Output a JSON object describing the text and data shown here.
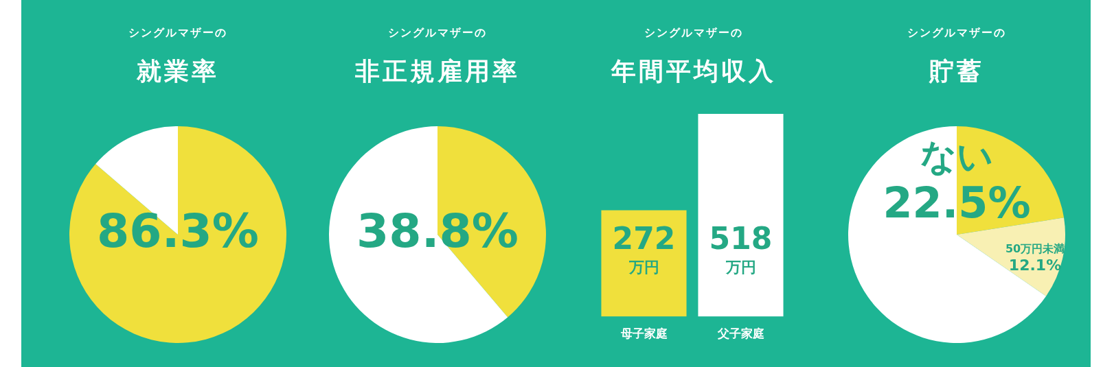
{
  "chart_data": [
    {
      "type": "pie",
      "subtitle": "シングルマザーの",
      "title": "就業率",
      "categories": [
        null,
        null
      ],
      "values": [
        86.3,
        13.7
      ],
      "colors": [
        "#f0e03c",
        "#ffffff"
      ],
      "value_labels": [
        "86.3%",
        null
      ]
    },
    {
      "type": "pie",
      "subtitle": "シングルマザーの",
      "title": "非正規雇用率",
      "categories": [
        null,
        null
      ],
      "values": [
        38.8,
        61.2
      ],
      "colors": [
        "#f0e03c",
        "#ffffff"
      ],
      "value_labels": [
        "38.8%",
        null
      ]
    },
    {
      "type": "bar",
      "subtitle": "シングルマザーの",
      "title": "年間平均収入",
      "categories": [
        "母子家庭",
        "父子家庭"
      ],
      "values": [
        272,
        518
      ],
      "colors": [
        "#f0e03c",
        "#ffffff"
      ],
      "value_labels": [
        "272 万円",
        "518 万円"
      ]
    },
    {
      "type": "pie",
      "subtitle": "シングルマザーの",
      "title": "貯蓄",
      "categories": [
        "ない",
        "50万円未満",
        null
      ],
      "values": [
        22.5,
        12.1,
        65.4
      ],
      "colors": [
        "#f0e03c",
        "#f8f0b3",
        "#ffffff"
      ],
      "value_labels": [
        "22.5%",
        "12.1%",
        null
      ]
    }
  ]
}
